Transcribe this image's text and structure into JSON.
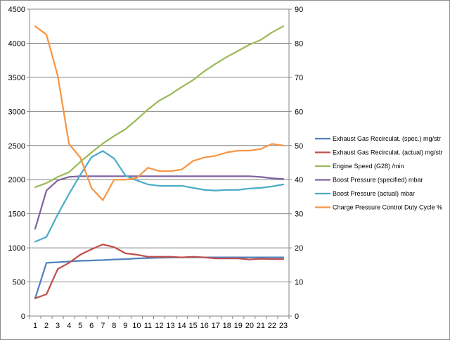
{
  "chart_data": {
    "type": "line",
    "x": [
      1,
      2,
      3,
      4,
      5,
      6,
      7,
      8,
      9,
      10,
      11,
      12,
      13,
      14,
      15,
      16,
      17,
      18,
      19,
      20,
      21,
      22,
      23
    ],
    "y_primary": {
      "range": [
        0,
        4500
      ],
      "ticks": [
        "0",
        "500",
        "1000",
        "1500",
        "2000",
        "2500",
        "3000",
        "3500",
        "4000",
        "4500"
      ]
    },
    "y_secondary": {
      "range": [
        0,
        90
      ],
      "ticks": [
        "0",
        "10",
        "20",
        "30",
        "40",
        "50",
        "60",
        "70",
        "80",
        "90"
      ]
    },
    "legend_position": "right",
    "grid": "horizontal",
    "series": [
      {
        "name": "Exhaust Gas Recirculat. (spec.)  mg/str",
        "color": "#4f81bd",
        "axis": "primary",
        "values": [
          260,
          780,
          790,
          800,
          810,
          815,
          820,
          830,
          835,
          845,
          850,
          855,
          858,
          860,
          860,
          860,
          860,
          860,
          860,
          860,
          860,
          860,
          860
        ]
      },
      {
        "name": "Exhaust Gas Recirculat. (actual)  mg/str",
        "color": "#c0504d",
        "axis": "primary",
        "values": [
          260,
          320,
          690,
          780,
          900,
          980,
          1050,
          1010,
          920,
          900,
          870,
          870,
          870,
          860,
          870,
          860,
          845,
          845,
          845,
          830,
          840,
          835,
          835
        ]
      },
      {
        "name": "Engine Speed (G28)  /min",
        "color": "#9bbb59",
        "axis": "primary",
        "values": [
          1890,
          1950,
          2040,
          2110,
          2260,
          2400,
          2530,
          2640,
          2740,
          2880,
          3030,
          3160,
          3250,
          3360,
          3460,
          3590,
          3700,
          3800,
          3890,
          3980,
          4050,
          4160,
          4250
        ]
      },
      {
        "name": "Boost Pressure (specified)  mbar",
        "color": "#8064a2",
        "axis": "primary",
        "values": [
          1280,
          1840,
          1990,
          2040,
          2050,
          2050,
          2050,
          2050,
          2050,
          2050,
          2050,
          2050,
          2050,
          2050,
          2050,
          2050,
          2050,
          2050,
          2050,
          2050,
          2040,
          2020,
          2010
        ]
      },
      {
        "name": "Boost Pressure (actual)  mbar",
        "color": "#4bacc6",
        "axis": "primary",
        "values": [
          1090,
          1160,
          1490,
          1790,
          2070,
          2330,
          2420,
          2310,
          2060,
          1990,
          1930,
          1910,
          1910,
          1910,
          1880,
          1850,
          1840,
          1850,
          1850,
          1870,
          1880,
          1900,
          1930
        ]
      },
      {
        "name": "Charge Pressure Control Duty Cycle  %",
        "color": "#f79646",
        "axis": "secondary",
        "values": [
          85,
          82.5,
          70.5,
          50.5,
          46.5,
          37.5,
          34,
          40,
          40,
          40.5,
          43.5,
          42.5,
          42.5,
          43,
          45.5,
          46.5,
          47,
          48,
          48.5,
          48.5,
          49,
          50.5,
          50
        ]
      }
    ]
  }
}
